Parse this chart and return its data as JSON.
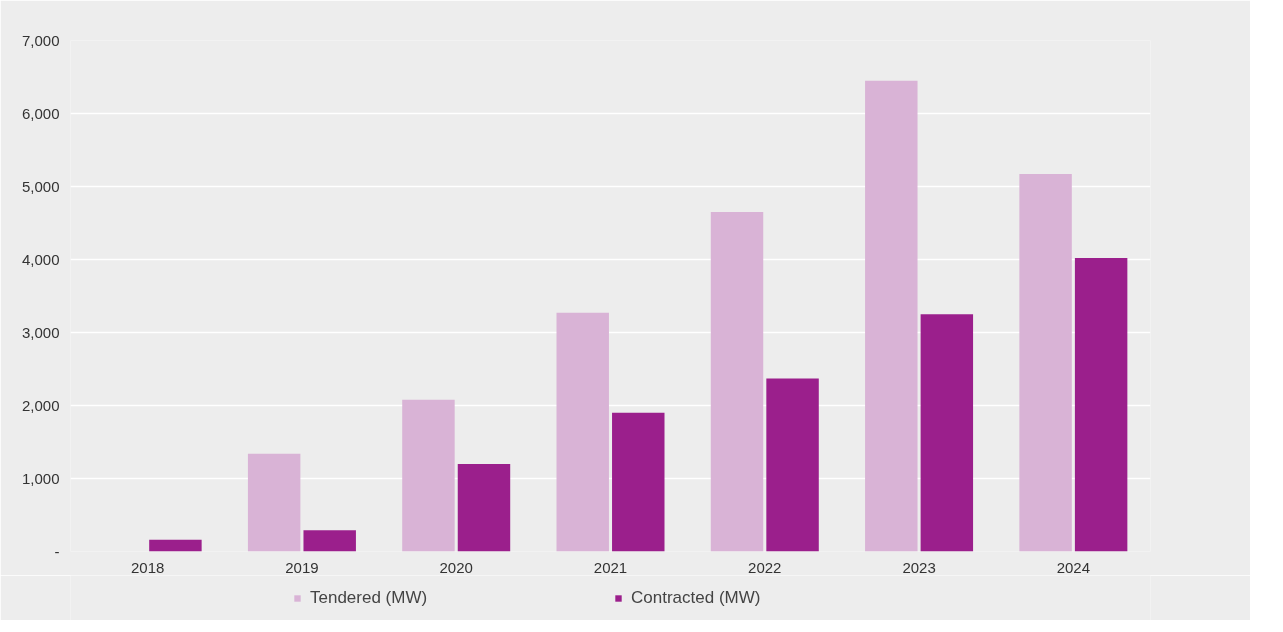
{
  "chart_data": {
    "type": "bar",
    "categories": [
      "2018",
      "2019",
      "2020",
      "2021",
      "2022",
      "2023",
      "2024"
    ],
    "series": [
      {
        "name": "Tendered (MW)",
        "color": "#d9b3d6",
        "values": [
          null,
          1340,
          2080,
          3270,
          4650,
          6450,
          5170
        ]
      },
      {
        "name": "Contracted (MW)",
        "color": "#9b1f8c",
        "values": [
          160,
          290,
          1200,
          1900,
          2370,
          3250,
          4020
        ]
      }
    ],
    "ylim": [
      0,
      7000
    ],
    "yticks": [
      {
        "value": 0,
        "label": "-"
      },
      {
        "value": 1000,
        "label": "1,000"
      },
      {
        "value": 2000,
        "label": "2,000"
      },
      {
        "value": 3000,
        "label": "3,000"
      },
      {
        "value": 4000,
        "label": "4,000"
      },
      {
        "value": 5000,
        "label": "5,000"
      },
      {
        "value": 6000,
        "label": "6,000"
      },
      {
        "value": 7000,
        "label": "7,000"
      }
    ],
    "grid": "y",
    "legend": "bottom"
  }
}
